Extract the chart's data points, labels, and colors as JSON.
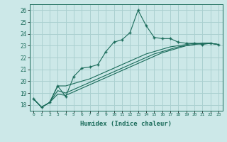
{
  "xlabel": "Humidex (Indice chaleur)",
  "background_color": "#cce8e8",
  "grid_color": "#aad0d0",
  "line_color": "#1a6b5a",
  "xlim": [
    -0.5,
    23.5
  ],
  "ylim": [
    17.5,
    26.5
  ],
  "xticks": [
    0,
    1,
    2,
    3,
    4,
    5,
    6,
    7,
    8,
    9,
    10,
    11,
    12,
    13,
    14,
    15,
    16,
    17,
    18,
    19,
    20,
    21,
    22,
    23
  ],
  "yticks": [
    18,
    19,
    20,
    21,
    22,
    23,
    24,
    25,
    26
  ],
  "lines": [
    {
      "x": [
        0,
        1,
        2,
        3,
        4,
        5,
        6,
        7,
        8,
        9,
        10,
        11,
        12,
        13,
        14,
        15,
        16,
        17,
        18,
        19,
        20,
        21,
        22,
        23
      ],
      "y": [
        18.5,
        17.8,
        18.2,
        19.6,
        18.7,
        20.4,
        21.1,
        21.2,
        21.4,
        22.5,
        23.3,
        23.5,
        24.1,
        26.0,
        24.7,
        23.7,
        23.6,
        23.6,
        23.3,
        23.2,
        23.2,
        23.1,
        23.2,
        23.1
      ],
      "marker": "+"
    },
    {
      "x": [
        0,
        1,
        2,
        3,
        4,
        5,
        6,
        7,
        8,
        9,
        10,
        11,
        12,
        13,
        14,
        15,
        16,
        17,
        18,
        19,
        20,
        21,
        22,
        23
      ],
      "y": [
        18.5,
        17.8,
        18.2,
        19.6,
        19.6,
        19.8,
        20.0,
        20.2,
        20.5,
        20.8,
        21.1,
        21.4,
        21.7,
        22.0,
        22.3,
        22.5,
        22.7,
        22.9,
        23.0,
        23.1,
        23.2,
        23.2,
        23.2,
        23.1
      ],
      "marker": null
    },
    {
      "x": [
        0,
        1,
        2,
        3,
        4,
        5,
        6,
        7,
        8,
        9,
        10,
        11,
        12,
        13,
        14,
        15,
        16,
        17,
        18,
        19,
        20,
        21,
        22,
        23
      ],
      "y": [
        18.5,
        17.8,
        18.2,
        19.2,
        19.0,
        19.3,
        19.6,
        19.9,
        20.2,
        20.5,
        20.8,
        21.1,
        21.4,
        21.7,
        22.0,
        22.3,
        22.5,
        22.7,
        22.9,
        23.0,
        23.1,
        23.2,
        23.2,
        23.1
      ],
      "marker": null
    },
    {
      "x": [
        0,
        1,
        2,
        3,
        4,
        5,
        6,
        7,
        8,
        9,
        10,
        11,
        12,
        13,
        14,
        15,
        16,
        17,
        18,
        19,
        20,
        21,
        22,
        23
      ],
      "y": [
        18.5,
        17.8,
        18.2,
        18.9,
        18.8,
        19.1,
        19.4,
        19.7,
        20.0,
        20.3,
        20.6,
        20.9,
        21.2,
        21.5,
        21.8,
        22.1,
        22.4,
        22.6,
        22.8,
        23.0,
        23.1,
        23.2,
        23.2,
        23.1
      ],
      "marker": null
    }
  ]
}
